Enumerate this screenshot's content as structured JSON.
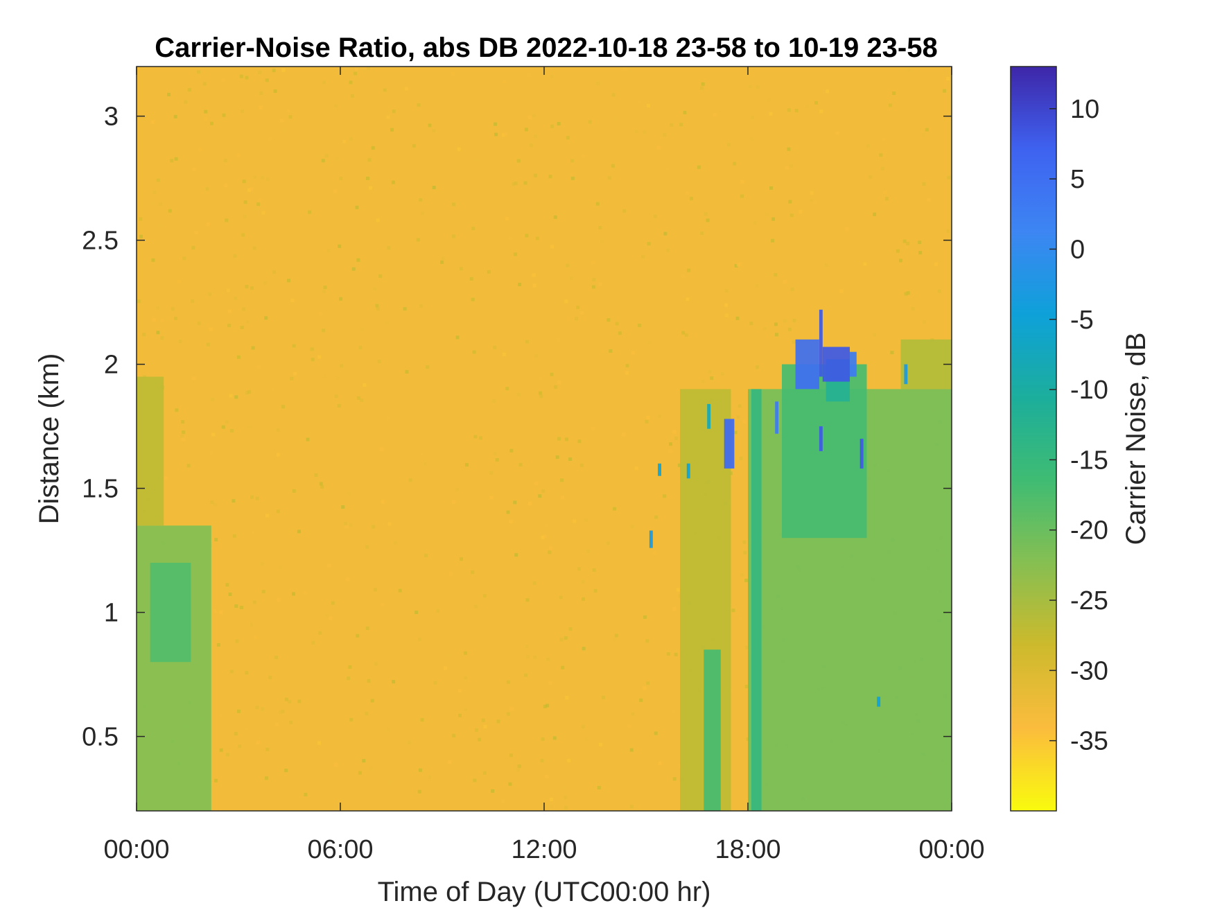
{
  "chart_data": {
    "type": "heatmap",
    "title": "Carrier-Noise Ratio, abs DB 2022-10-18 23-58 to 10-19 23-58",
    "xlabel": "Time of Day (UTC00:00 hr)",
    "ylabel": "Distance (km)",
    "colorbar_label": "Carrier Noise, dB",
    "xlim_hours": [
      0,
      24
    ],
    "ylim_km": [
      0.2,
      3.2
    ],
    "clim_db": [
      -40,
      13
    ],
    "x_ticks": [
      {
        "value": 0,
        "label": "00:00"
      },
      {
        "value": 6,
        "label": "06:00"
      },
      {
        "value": 12,
        "label": "12:00"
      },
      {
        "value": 18,
        "label": "18:00"
      },
      {
        "value": 24,
        "label": "00:00"
      }
    ],
    "y_ticks": [
      {
        "value": 0.5,
        "label": "0.5"
      },
      {
        "value": 1,
        "label": "1"
      },
      {
        "value": 1.5,
        "label": "1.5"
      },
      {
        "value": 2,
        "label": "2"
      },
      {
        "value": 2.5,
        "label": "2.5"
      },
      {
        "value": 3,
        "label": "3"
      }
    ],
    "colorbar_ticks": [
      {
        "value": 10,
        "label": "10"
      },
      {
        "value": 5,
        "label": "5"
      },
      {
        "value": 0,
        "label": "0"
      },
      {
        "value": -5,
        "label": "-5"
      },
      {
        "value": -10,
        "label": "-10"
      },
      {
        "value": -15,
        "label": "-15"
      },
      {
        "value": -20,
        "label": "-20"
      },
      {
        "value": -25,
        "label": "-25"
      },
      {
        "value": -30,
        "label": "-30"
      },
      {
        "value": -35,
        "label": "-35"
      }
    ],
    "colormap": "parula",
    "colormap_stops": [
      "#f9fb0e",
      "#fbbc3d",
      "#cdba2c",
      "#86bf52",
      "#3fbc73",
      "#1cae9c",
      "#0ea1d9",
      "#3d86f3",
      "#3e62f0",
      "#3e26a8"
    ],
    "background_db": -33,
    "regions": [
      {
        "t_start": 0.0,
        "t_end": 2.2,
        "d_start": 0.2,
        "d_end": 1.35,
        "db": -22
      },
      {
        "t_start": 0.0,
        "t_end": 0.8,
        "d_start": 1.35,
        "d_end": 1.95,
        "db": -27
      },
      {
        "t_start": 0.4,
        "t_end": 1.6,
        "d_start": 0.8,
        "d_end": 1.2,
        "db": -18
      },
      {
        "t_start": 16.0,
        "t_end": 17.5,
        "d_start": 0.2,
        "d_end": 1.9,
        "db": -27
      },
      {
        "t_start": 16.7,
        "t_end": 17.2,
        "d_start": 0.2,
        "d_end": 0.85,
        "db": -17
      },
      {
        "t_start": 18.0,
        "t_end": 24.0,
        "d_start": 0.2,
        "d_end": 1.9,
        "db": -21
      },
      {
        "t_start": 18.1,
        "t_end": 18.4,
        "d_start": 0.2,
        "d_end": 1.9,
        "db": -15
      },
      {
        "t_start": 19.0,
        "t_end": 21.5,
        "d_start": 1.3,
        "d_end": 2.0,
        "db": -17
      },
      {
        "t_start": 22.5,
        "t_end": 24.0,
        "d_start": 1.9,
        "d_end": 2.1,
        "db": -26
      },
      {
        "t_start": 20.3,
        "t_end": 21.0,
        "d_start": 1.85,
        "d_end": 2.02,
        "db": -12
      },
      {
        "t_start": 19.4,
        "t_end": 20.1,
        "d_start": 1.9,
        "d_end": 2.1,
        "db": 5
      },
      {
        "t_start": 20.1,
        "t_end": 20.2,
        "d_start": 1.95,
        "d_end": 2.22,
        "db": 8
      },
      {
        "t_start": 20.2,
        "t_end": 21.0,
        "d_start": 1.93,
        "d_end": 2.07,
        "db": 8
      },
      {
        "t_start": 21.0,
        "t_end": 21.2,
        "d_start": 1.95,
        "d_end": 2.05,
        "db": 3
      },
      {
        "t_start": 17.3,
        "t_end": 17.6,
        "d_start": 1.58,
        "d_end": 1.78,
        "db": 6
      },
      {
        "t_start": 20.1,
        "t_end": 20.2,
        "d_start": 1.65,
        "d_end": 1.75,
        "db": 8
      },
      {
        "t_start": 21.3,
        "t_end": 21.4,
        "d_start": 1.58,
        "d_end": 1.7,
        "db": 8
      },
      {
        "t_start": 15.1,
        "t_end": 15.2,
        "d_start": 1.26,
        "d_end": 1.33,
        "db": -3
      },
      {
        "t_start": 15.35,
        "t_end": 15.45,
        "d_start": 1.55,
        "d_end": 1.6,
        "db": -5
      },
      {
        "t_start": 16.2,
        "t_end": 16.3,
        "d_start": 1.54,
        "d_end": 1.6,
        "db": -5
      },
      {
        "t_start": 16.8,
        "t_end": 16.9,
        "d_start": 1.74,
        "d_end": 1.84,
        "db": -8
      },
      {
        "t_start": 18.8,
        "t_end": 18.9,
        "d_start": 1.72,
        "d_end": 1.85,
        "db": 3
      },
      {
        "t_start": 21.8,
        "t_end": 21.9,
        "d_start": 0.62,
        "d_end": 0.66,
        "db": -5
      },
      {
        "t_start": 22.6,
        "t_end": 22.7,
        "d_start": 1.92,
        "d_end": 2.0,
        "db": -3
      }
    ]
  }
}
